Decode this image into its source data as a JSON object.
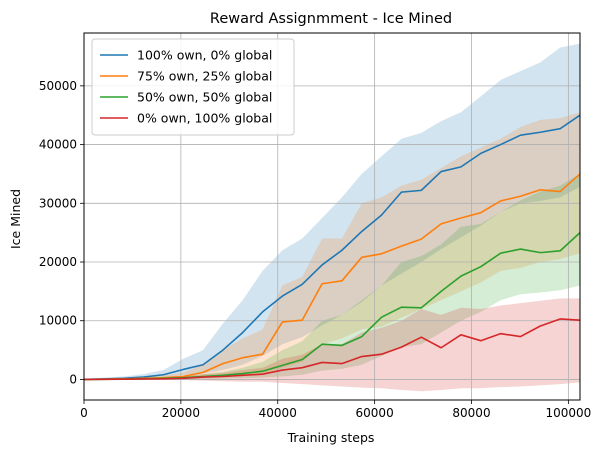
{
  "chart_data": {
    "type": "line",
    "title": "Reward Assignmment - Ice Mined",
    "xlabel": "Training steps",
    "ylabel": "Ice Mined",
    "xlim": [
      0,
      102400
    ],
    "ylim": [
      -3500,
      59000
    ],
    "xticks": [
      0,
      20000,
      40000,
      60000,
      80000,
      100000
    ],
    "yticks": [
      0,
      10000,
      20000,
      30000,
      40000,
      50000
    ],
    "grid": true,
    "legend_position": "upper-left",
    "x": [
      0,
      4096,
      8192,
      12288,
      16384,
      20480,
      24576,
      28672,
      32768,
      36864,
      40960,
      45056,
      49152,
      53248,
      57344,
      61440,
      65536,
      69632,
      73728,
      77824,
      81920,
      86016,
      90112,
      94208,
      98304,
      102400
    ],
    "series": [
      {
        "name": "100% own, 0% global",
        "color": "#1f77b4",
        "values": [
          0,
          80,
          200,
          400,
          800,
          1700,
          2500,
          5000,
          8000,
          11500,
          14200,
          16200,
          19500,
          22000,
          25200,
          28000,
          31900,
          32200,
          35400,
          36200,
          38500,
          40000,
          41600,
          42100,
          42700,
          45000
        ],
        "lower": [
          -200,
          -100,
          0,
          100,
          300,
          700,
          1000,
          1600,
          2500,
          4000,
          6000,
          7200,
          9200,
          11000,
          13200,
          16000,
          18000,
          20000,
          22200,
          24200,
          26200,
          28500,
          30000,
          30400,
          31000,
          32800
        ],
        "upper": [
          200,
          300,
          500,
          900,
          1600,
          3500,
          5000,
          9500,
          13500,
          18500,
          22000,
          24000,
          27500,
          31000,
          35000,
          38000,
          41000,
          42000,
          44000,
          45500,
          48200,
          51000,
          52500,
          54000,
          56500,
          57200
        ]
      },
      {
        "name": "75% own, 25% global",
        "color": "#ff7f0e",
        "values": [
          0,
          50,
          100,
          200,
          300,
          500,
          1200,
          2700,
          3700,
          4300,
          9800,
          10100,
          16300,
          16800,
          20800,
          21400,
          22700,
          23900,
          26500,
          27500,
          28400,
          30400,
          31200,
          32300,
          32000,
          35000
        ],
        "lower": [
          -150,
          -100,
          -50,
          0,
          0,
          100,
          300,
          600,
          900,
          1000,
          2000,
          3000,
          6000,
          7000,
          8500,
          9000,
          10500,
          12000,
          13500,
          15000,
          16500,
          18500,
          19000,
          20000,
          20500,
          21500
        ],
        "upper": [
          150,
          200,
          300,
          400,
          700,
          1200,
          2500,
          5000,
          7000,
          8500,
          16000,
          17500,
          24000,
          24000,
          30000,
          31000,
          33000,
          34000,
          36000,
          38000,
          39500,
          41000,
          43000,
          44200,
          44500,
          45500
        ]
      },
      {
        "name": "50% own, 50% global",
        "color": "#2ca02c",
        "values": [
          0,
          30,
          60,
          100,
          200,
          300,
          500,
          700,
          1000,
          1400,
          2400,
          3400,
          6000,
          5800,
          7300,
          10600,
          12300,
          12200,
          15000,
          17600,
          19200,
          21500,
          22200,
          21600,
          21900,
          25000
        ],
        "lower": [
          -100,
          -80,
          -60,
          -40,
          0,
          50,
          100,
          150,
          200,
          300,
          500,
          800,
          1500,
          1800,
          2500,
          4000,
          5500,
          6000,
          8000,
          10000,
          11500,
          13500,
          14500,
          14800,
          15200,
          16000
        ],
        "upper": [
          100,
          150,
          200,
          300,
          400,
          600,
          900,
          1300,
          2000,
          3000,
          5000,
          6500,
          10000,
          11000,
          13500,
          16000,
          20000,
          21000,
          23000,
          26000,
          26500,
          28500,
          30500,
          32000,
          33000,
          35000
        ]
      },
      {
        "name": "0% own, 100% global",
        "color": "#d62728",
        "values": [
          0,
          20,
          40,
          80,
          100,
          200,
          400,
          500,
          700,
          900,
          1600,
          2000,
          2900,
          2700,
          3900,
          4300,
          5500,
          7200,
          5400,
          7600,
          6600,
          7800,
          7300,
          9100,
          10300,
          10100
        ],
        "lower": [
          -100,
          -100,
          -100,
          -100,
          -100,
          -100,
          -200,
          -300,
          -400,
          -400,
          -600,
          -800,
          -1000,
          -1200,
          -1400,
          -1500,
          -1800,
          -2000,
          -1800,
          -1500,
          -1500,
          -1300,
          -1200,
          -1000,
          -800,
          -500
        ],
        "upper": [
          100,
          100,
          150,
          200,
          300,
          500,
          900,
          1100,
          1600,
          2000,
          3500,
          4200,
          6000,
          6000,
          8000,
          8800,
          10000,
          12000,
          11000,
          12200,
          12000,
          12600,
          13000,
          13400,
          13800,
          13800
        ]
      }
    ]
  }
}
